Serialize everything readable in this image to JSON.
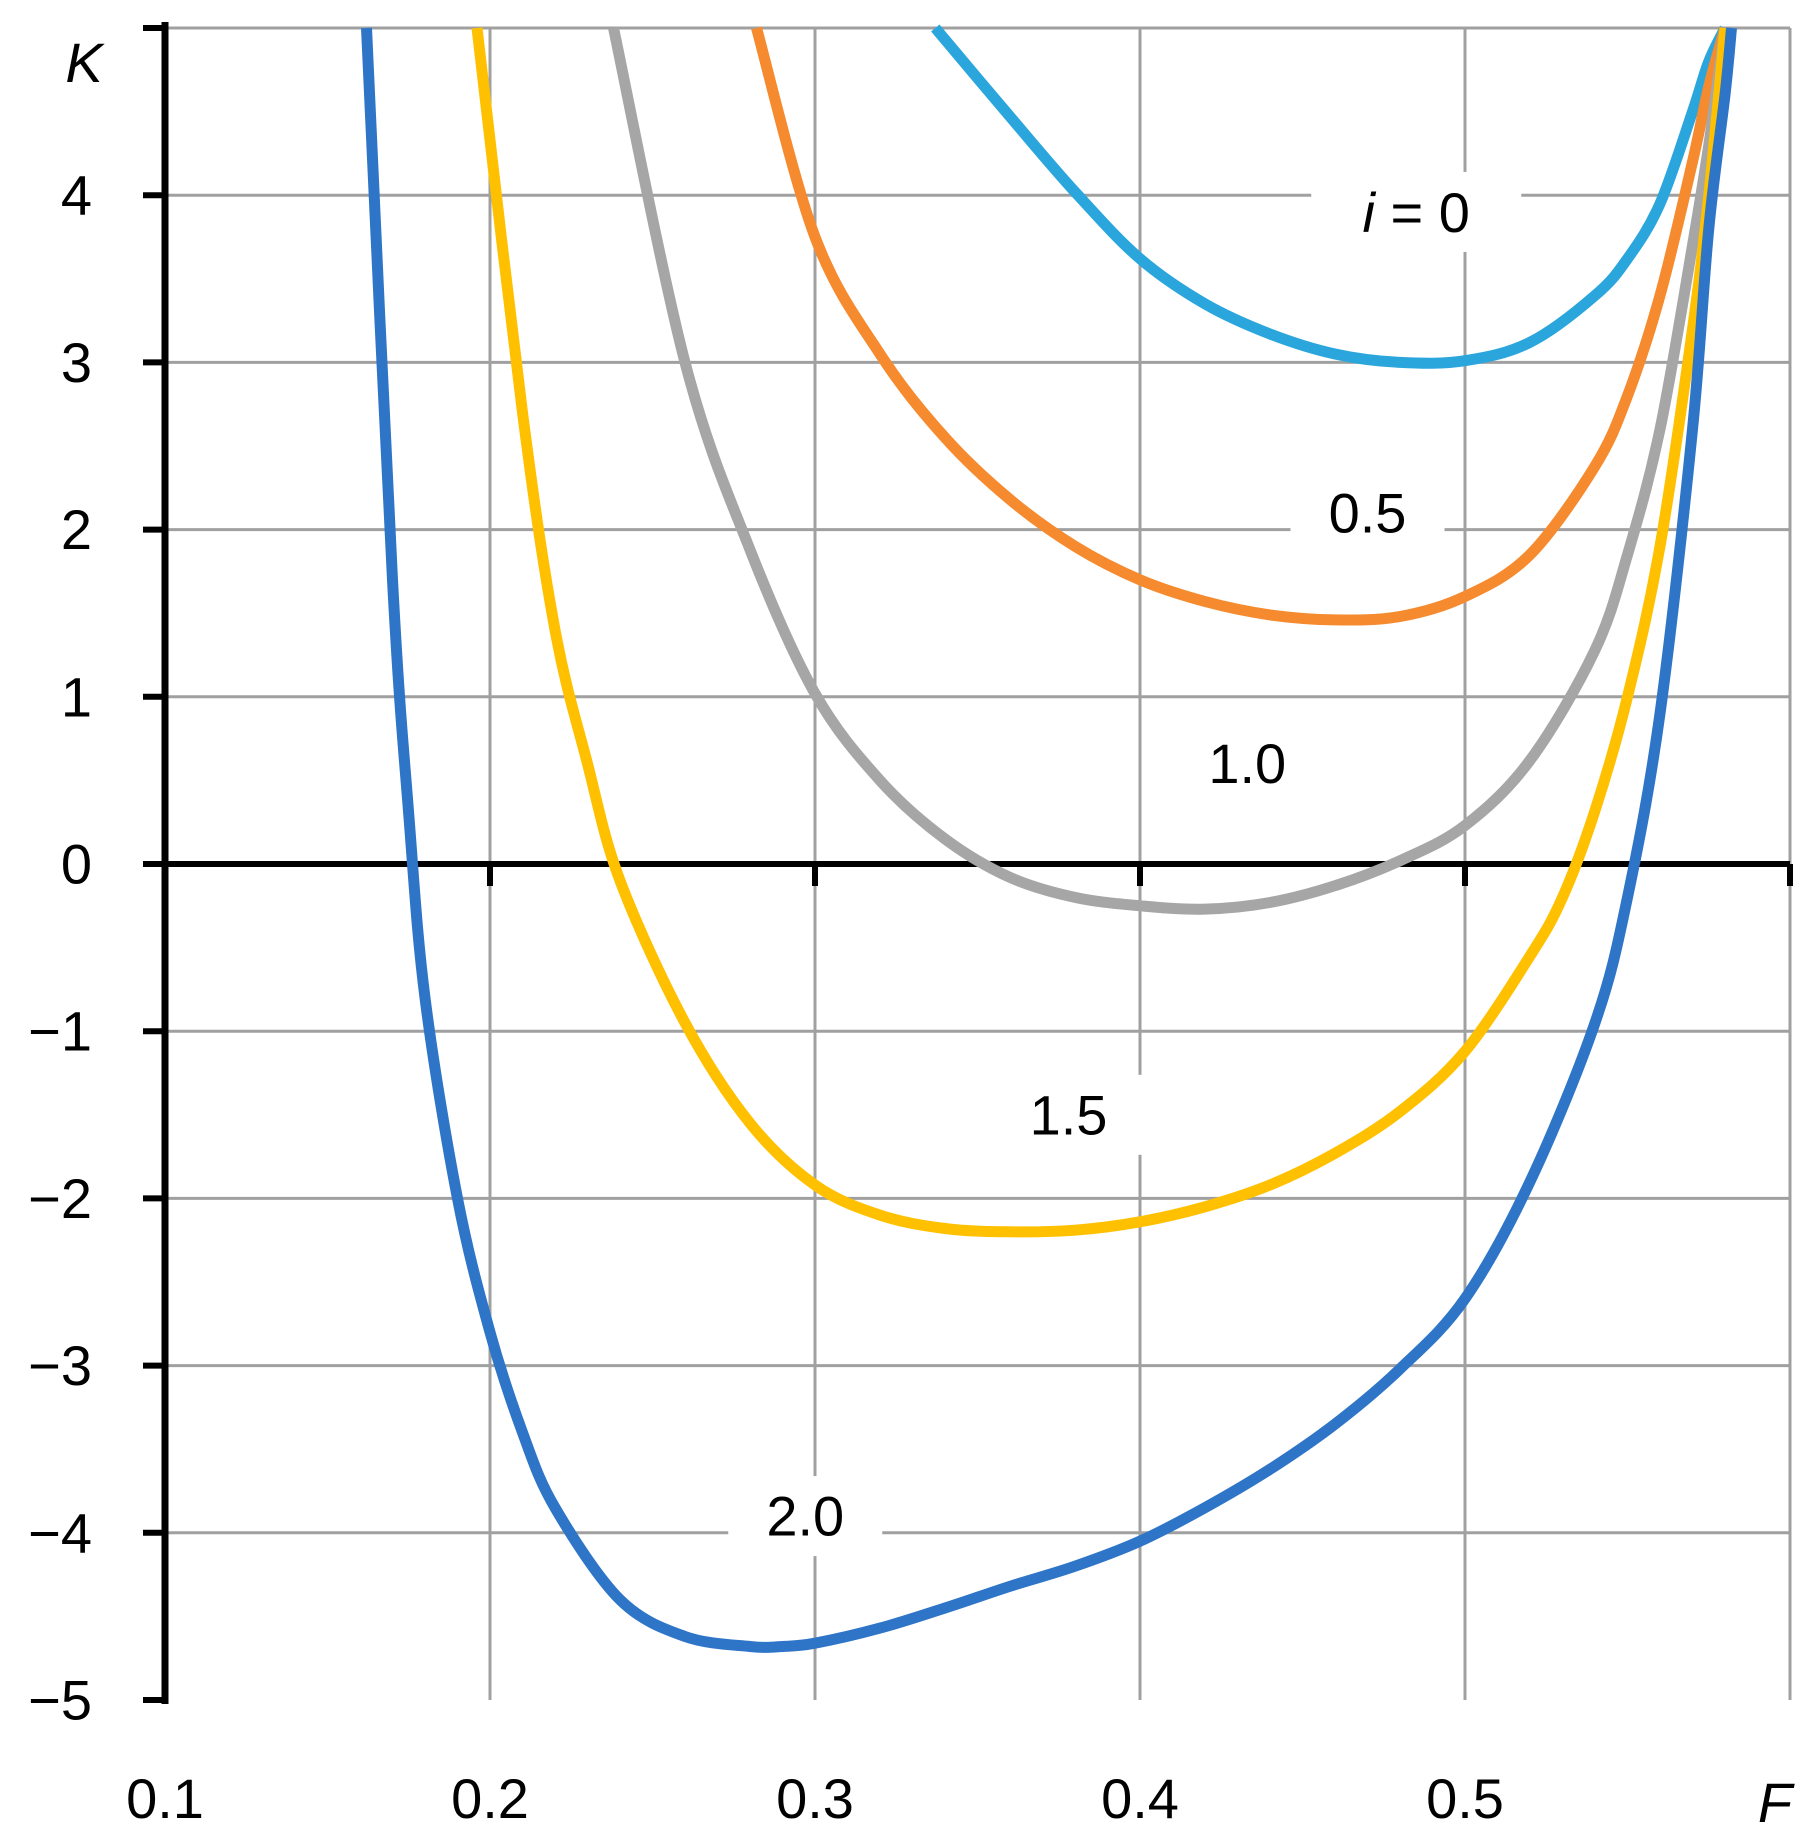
{
  "chart_data": {
    "type": "line",
    "title": "",
    "xlabel": "F",
    "ylabel": "K",
    "xlim": [
      0.1,
      0.6
    ],
    "ylim": [
      -5,
      5
    ],
    "xticks": [
      0.1,
      0.2,
      0.3,
      0.4,
      0.5,
      0.6
    ],
    "yticks": [
      -5,
      -4,
      -3,
      -2,
      -1,
      0,
      1,
      2,
      3,
      4,
      5
    ],
    "xtick_labels": [
      "0.1",
      "0.2",
      "0.3",
      "0.4",
      "0.5",
      ""
    ],
    "ytick_labels": [
      "−5",
      "−4",
      "−3",
      "−2",
      "−1",
      "0",
      "1",
      "2",
      "3",
      "4",
      ""
    ],
    "grid": true,
    "legend": "none",
    "series": [
      {
        "label": "i = 0",
        "color": "#2BA6DD",
        "x": [
          0.337,
          0.36,
          0.38,
          0.4,
          0.42,
          0.44,
          0.46,
          0.48,
          0.5,
          0.52,
          0.54,
          0.55,
          0.56,
          0.57,
          0.575,
          0.58
        ],
        "y": [
          5.0,
          4.47,
          4.02,
          3.62,
          3.35,
          3.17,
          3.05,
          3.0,
          3.01,
          3.12,
          3.4,
          3.62,
          3.95,
          4.5,
          4.8,
          5.0
        ]
      },
      {
        "label": "0.5",
        "color": "#F58A2E",
        "x": [
          0.282,
          0.3,
          0.32,
          0.34,
          0.36,
          0.38,
          0.4,
          0.42,
          0.44,
          0.46,
          0.48,
          0.5,
          0.52,
          0.54,
          0.55,
          0.56,
          0.57,
          0.575,
          0.58
        ],
        "y": [
          5.0,
          3.75,
          3.05,
          2.55,
          2.18,
          1.9,
          1.7,
          1.57,
          1.49,
          1.46,
          1.48,
          1.6,
          1.85,
          2.38,
          2.8,
          3.4,
          4.2,
          4.65,
          5.0
        ]
      },
      {
        "label": "1.0",
        "color": "#A6A6A6",
        "x": [
          0.238,
          0.26,
          0.28,
          0.3,
          0.32,
          0.34,
          0.36,
          0.38,
          0.4,
          0.42,
          0.44,
          0.46,
          0.48,
          0.5,
          0.52,
          0.54,
          0.55,
          0.56,
          0.57,
          0.575,
          0.58
        ],
        "y": [
          5.0,
          3.0,
          1.88,
          1.02,
          0.5,
          0.15,
          -0.08,
          -0.2,
          -0.25,
          -0.27,
          -0.23,
          -0.13,
          0.02,
          0.23,
          0.62,
          1.28,
          1.85,
          2.6,
          3.7,
          4.3,
          5.0
        ]
      },
      {
        "label": "1.5",
        "color": "#FFC000",
        "x": [
          0.196,
          0.21,
          0.22,
          0.23,
          0.24,
          0.26,
          0.28,
          0.3,
          0.32,
          0.34,
          0.36,
          0.38,
          0.4,
          0.42,
          0.44,
          0.46,
          0.48,
          0.5,
          0.52,
          0.53,
          0.54,
          0.55,
          0.56,
          0.57,
          0.575,
          0.58
        ],
        "y": [
          5.0,
          2.7,
          1.4,
          0.6,
          -0.1,
          -0.95,
          -1.55,
          -1.92,
          -2.1,
          -2.18,
          -2.2,
          -2.19,
          -2.14,
          -2.05,
          -1.92,
          -1.73,
          -1.48,
          -1.12,
          -0.55,
          -0.2,
          0.32,
          1.0,
          1.9,
          3.2,
          4.0,
          5.0
        ]
      },
      {
        "label": "2.0",
        "color": "#2E75C8",
        "x": [
          0.162,
          0.17,
          0.175,
          0.18,
          0.19,
          0.2,
          0.21,
          0.22,
          0.24,
          0.26,
          0.28,
          0.29,
          0.3,
          0.32,
          0.34,
          0.36,
          0.38,
          0.4,
          0.42,
          0.44,
          0.46,
          0.48,
          0.5,
          0.52,
          0.54,
          0.55,
          0.56,
          0.57,
          0.575,
          0.58,
          0.582
        ],
        "y": [
          5.0,
          1.7,
          0.3,
          -0.8,
          -2.0,
          -2.8,
          -3.4,
          -3.85,
          -4.4,
          -4.62,
          -4.68,
          -4.68,
          -4.66,
          -4.57,
          -4.45,
          -4.32,
          -4.2,
          -4.05,
          -3.85,
          -3.62,
          -3.35,
          -3.02,
          -2.6,
          -1.9,
          -0.95,
          -0.2,
          0.9,
          2.6,
          3.8,
          4.6,
          5.0
        ]
      }
    ],
    "annotations": [
      {
        "italic_prefix": "i",
        "rest": " = 0",
        "x": 0.485,
        "y": 3.9
      },
      {
        "text": "0.5",
        "x": 0.47,
        "y": 2.1
      },
      {
        "text": "1.0",
        "x": 0.433,
        "y": 0.6
      },
      {
        "text": "1.5",
        "x": 0.378,
        "y": -1.5
      },
      {
        "text": "2.0",
        "x": 0.297,
        "y": -3.9
      }
    ],
    "styles": {
      "axis_color": "#000000",
      "grid_color": "#A0A0A0",
      "background": "#FFFFFF"
    }
  }
}
